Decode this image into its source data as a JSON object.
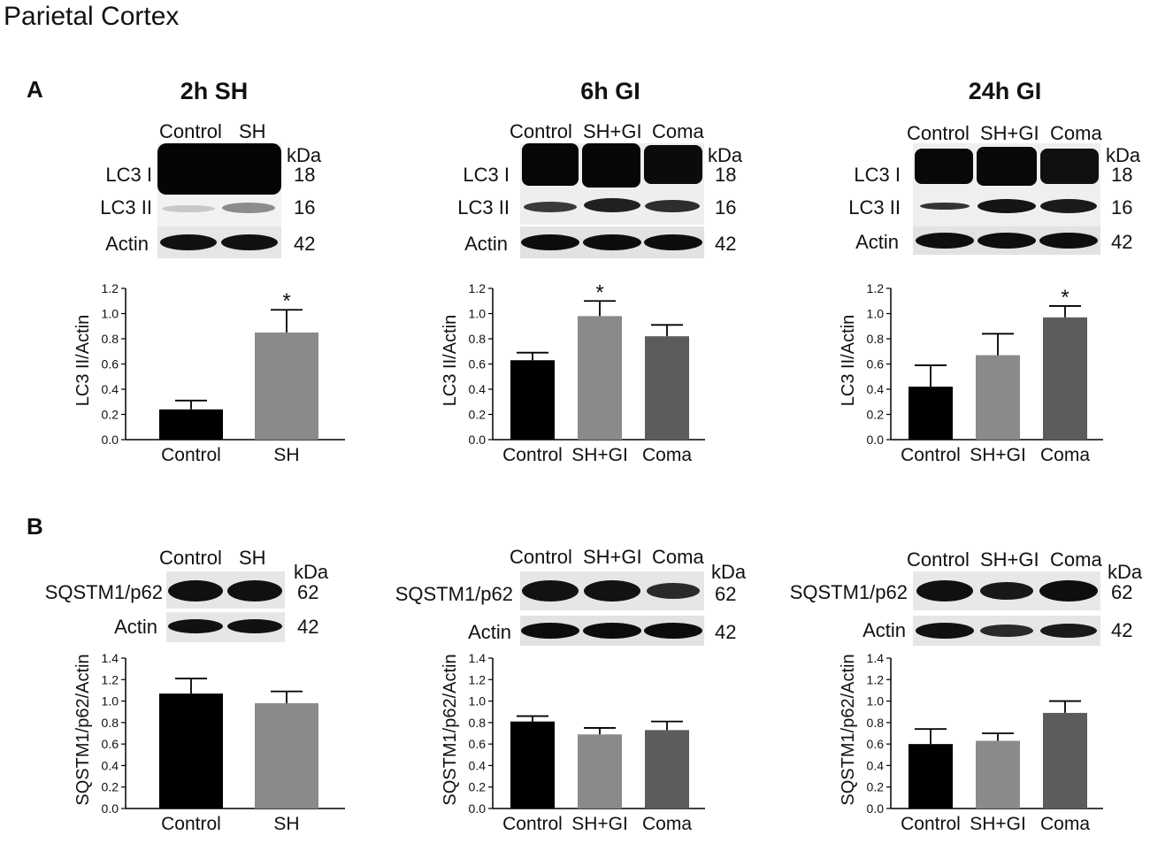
{
  "figure": {
    "title": "Parietal Cortex",
    "panel_labels": [
      "A",
      "B"
    ],
    "colors": {
      "control": "#000000",
      "treatment1": "#8a8a8a",
      "treatment2": "#5c5c5c"
    }
  },
  "panel_a": [
    {
      "title": "2h SH",
      "lanes": [
        "Control",
        "SH"
      ],
      "bands": [
        {
          "label": "LC3 I",
          "kda": "18"
        },
        {
          "label": "LC3 II",
          "kda": "16"
        },
        {
          "label": "Actin",
          "kda": "42"
        }
      ],
      "kda_header": "kDa"
    },
    {
      "title": "6h GI",
      "lanes": [
        "Control",
        "SH+GI",
        "Coma"
      ],
      "bands": [
        {
          "label": "LC3 I",
          "kda": "18"
        },
        {
          "label": "LC3 II",
          "kda": "16"
        },
        {
          "label": "Actin",
          "kda": "42"
        }
      ],
      "kda_header": "kDa"
    },
    {
      "title": "24h GI",
      "lanes": [
        "Control",
        "SH+GI",
        "Coma"
      ],
      "bands": [
        {
          "label": "LC3 I",
          "kda": "18"
        },
        {
          "label": "LC3 II",
          "kda": "16"
        },
        {
          "label": "Actin",
          "kda": "42"
        }
      ],
      "kda_header": "kDa"
    }
  ],
  "panel_b": [
    {
      "lanes": [
        "Control",
        "SH"
      ],
      "bands": [
        {
          "label": "SQSTM1/p62",
          "kda": "62"
        },
        {
          "label": "Actin",
          "kda": "42"
        }
      ],
      "kda_header": "kDa"
    },
    {
      "lanes": [
        "Control",
        "SH+GI",
        "Coma"
      ],
      "bands": [
        {
          "label": "SQSTM1/p62",
          "kda": "62"
        },
        {
          "label": "Actin",
          "kda": "42"
        }
      ],
      "kda_header": "kDa"
    },
    {
      "lanes": [
        "Control",
        "SH+GI",
        "Coma"
      ],
      "bands": [
        {
          "label": "SQSTM1/p62",
          "kda": "62"
        },
        {
          "label": "Actin",
          "kda": "42"
        }
      ],
      "kda_header": "kDa"
    }
  ],
  "chart_data": [
    {
      "type": "bar",
      "title": "2h SH",
      "ylabel": "LC3 II/Actin",
      "ylim": [
        0,
        1.2
      ],
      "yticks": [
        "0.0",
        "0.2",
        "0.4",
        "0.6",
        "0.8",
        "1.0",
        "1.2"
      ],
      "categories": [
        "Control",
        "SH"
      ],
      "values": [
        0.24,
        0.85
      ],
      "errors": [
        0.07,
        0.18
      ],
      "significance": [
        "",
        "*"
      ],
      "colors": [
        "#000000",
        "#8a8a8a"
      ]
    },
    {
      "type": "bar",
      "title": "6h GI",
      "ylabel": "LC3 II/Actin",
      "ylim": [
        0,
        1.2
      ],
      "yticks": [
        "0.0",
        "0.2",
        "0.4",
        "0.6",
        "0.8",
        "1.0",
        "1.2"
      ],
      "categories": [
        "Control",
        "SH+GI",
        "Coma"
      ],
      "values": [
        0.63,
        0.98,
        0.82
      ],
      "errors": [
        0.06,
        0.12,
        0.09
      ],
      "significance": [
        "",
        "*",
        ""
      ],
      "colors": [
        "#000000",
        "#8a8a8a",
        "#5c5c5c"
      ]
    },
    {
      "type": "bar",
      "title": "24h GI",
      "ylabel": "LC3 II/Actin",
      "ylim": [
        0,
        1.2
      ],
      "yticks": [
        "0.0",
        "0.2",
        "0.4",
        "0.6",
        "0.8",
        "1.0",
        "1.2"
      ],
      "categories": [
        "Control",
        "SH+GI",
        "Coma"
      ],
      "values": [
        0.42,
        0.67,
        0.97
      ],
      "errors": [
        0.17,
        0.17,
        0.09
      ],
      "significance": [
        "",
        "",
        "*"
      ],
      "colors": [
        "#000000",
        "#8a8a8a",
        "#5c5c5c"
      ]
    },
    {
      "type": "bar",
      "title": "",
      "ylabel": "SQSTM1/p62/Actin",
      "ylim": [
        0,
        1.4
      ],
      "yticks": [
        "0.0",
        "0.2",
        "0.4",
        "0.6",
        "0.8",
        "1.0",
        "1.2",
        "1.4"
      ],
      "categories": [
        "Control",
        "SH"
      ],
      "values": [
        1.07,
        0.98
      ],
      "errors": [
        0.14,
        0.11
      ],
      "significance": [
        "",
        ""
      ],
      "colors": [
        "#000000",
        "#8a8a8a"
      ]
    },
    {
      "type": "bar",
      "title": "",
      "ylabel": "SQSTM1/p62/Actin",
      "ylim": [
        0,
        1.4
      ],
      "yticks": [
        "0.0",
        "0.2",
        "0.4",
        "0.6",
        "0.8",
        "1.0",
        "1.2",
        "1.4"
      ],
      "categories": [
        "Control",
        "SH+GI",
        "Coma"
      ],
      "values": [
        0.81,
        0.69,
        0.73
      ],
      "errors": [
        0.05,
        0.06,
        0.08
      ],
      "significance": [
        "",
        "",
        ""
      ],
      "colors": [
        "#000000",
        "#8a8a8a",
        "#5c5c5c"
      ]
    },
    {
      "type": "bar",
      "title": "",
      "ylabel": "SQSTM1/p62/Actin",
      "ylim": [
        0,
        1.4
      ],
      "yticks": [
        "0.0",
        "0.2",
        "0.4",
        "0.6",
        "0.8",
        "1.0",
        "1.2",
        "1.4"
      ],
      "categories": [
        "Control",
        "SH+GI",
        "Coma"
      ],
      "values": [
        0.6,
        0.63,
        0.89
      ],
      "errors": [
        0.14,
        0.07,
        0.11
      ],
      "significance": [
        "",
        "",
        ""
      ],
      "colors": [
        "#000000",
        "#8a8a8a",
        "#5c5c5c"
      ]
    }
  ]
}
